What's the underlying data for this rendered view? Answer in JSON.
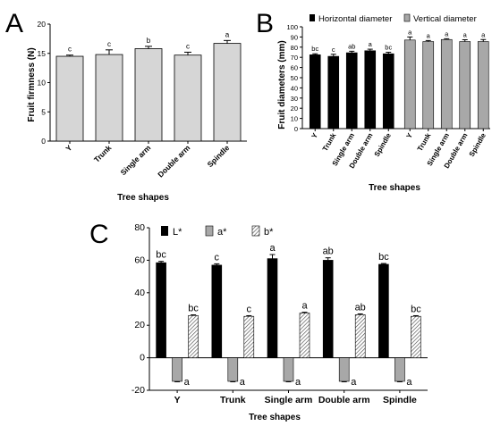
{
  "panel_labels": [
    "A",
    "B",
    "C"
  ],
  "colors": {
    "light_bar": "#d6d6d6",
    "dark_bar": "#000000",
    "mid_bar": "#a8a8a8",
    "outline": "#000000"
  },
  "chart_data": [
    {
      "id": "A",
      "type": "bar",
      "categories": [
        "Y",
        "Trunk",
        "Single arm",
        "Double arm",
        "Spindle"
      ],
      "values": [
        14.5,
        14.8,
        15.8,
        14.7,
        16.7
      ],
      "errors": [
        0.2,
        0.8,
        0.4,
        0.5,
        0.5
      ],
      "letters": [
        "c",
        "c",
        "b",
        "c",
        "a"
      ],
      "title": "",
      "xlabel": "Tree  shapes",
      "ylabel": "Fruit firmness (N)",
      "ylim": [
        0,
        20
      ],
      "yticks": [
        0,
        5,
        10,
        15,
        20
      ],
      "grid": false
    },
    {
      "id": "B",
      "type": "bar",
      "categories": [
        "Y",
        "Trunk",
        "Single arm",
        "Double arm",
        "Spindle"
      ],
      "series": [
        {
          "name": "Horizontal diameter",
          "values": [
            72.5,
            71.0,
            74.5,
            76.5,
            73.5
          ],
          "errors": [
            1.0,
            2.0,
            1.5,
            1.5,
            1.5
          ],
          "letters": [
            "bc",
            "c",
            "ab",
            "a",
            "bc"
          ]
        },
        {
          "name": "Vertical diameter",
          "values": [
            87.0,
            85.5,
            87.5,
            85.5,
            85.5
          ],
          "errors": [
            3.0,
            1.0,
            0.8,
            1.8,
            2.0
          ],
          "letters": [
            "a",
            "a",
            "a",
            "a",
            "a"
          ]
        }
      ],
      "title": "",
      "xlabel": "Tree  shapes",
      "ylabel": "Fruit diameters (mm)",
      "ylim": [
        0,
        100
      ],
      "yticks": [
        0,
        10,
        20,
        30,
        40,
        50,
        60,
        70,
        80,
        90,
        100
      ],
      "legend": "top",
      "grid": false
    },
    {
      "id": "C",
      "type": "bar",
      "categories": [
        "Y",
        "Trunk",
        "Single arm",
        "Double arm",
        "Spindle"
      ],
      "series": [
        {
          "name": "L*",
          "values": [
            58.5,
            57.0,
            61.0,
            60.0,
            57.5
          ],
          "errors": [
            0.8,
            0.8,
            2.5,
            1.5,
            0.5
          ],
          "letters": [
            "bc",
            "c",
            "a",
            "ab",
            "bc"
          ]
        },
        {
          "name": "a*",
          "values": [
            -14.5,
            -14.5,
            -14.5,
            -14.5,
            -14.5
          ],
          "errors": [
            0.3,
            0.3,
            0.3,
            0.3,
            0.3
          ],
          "letters": [
            "a",
            "a",
            "a",
            "a",
            "a"
          ]
        },
        {
          "name": "b*",
          "values": [
            26.0,
            25.5,
            27.5,
            26.5,
            25.5
          ],
          "errors": [
            0.4,
            0.4,
            0.5,
            0.5,
            0.4
          ],
          "letters": [
            "bc",
            "c",
            "a",
            "ab",
            "bc"
          ]
        }
      ],
      "title": "",
      "xlabel": "Tree  shapes",
      "ylabel": "",
      "ylim": [
        -20,
        80
      ],
      "yticks": [
        -20,
        0,
        20,
        40,
        60,
        80
      ],
      "legend": "top-left",
      "grid": false
    }
  ]
}
